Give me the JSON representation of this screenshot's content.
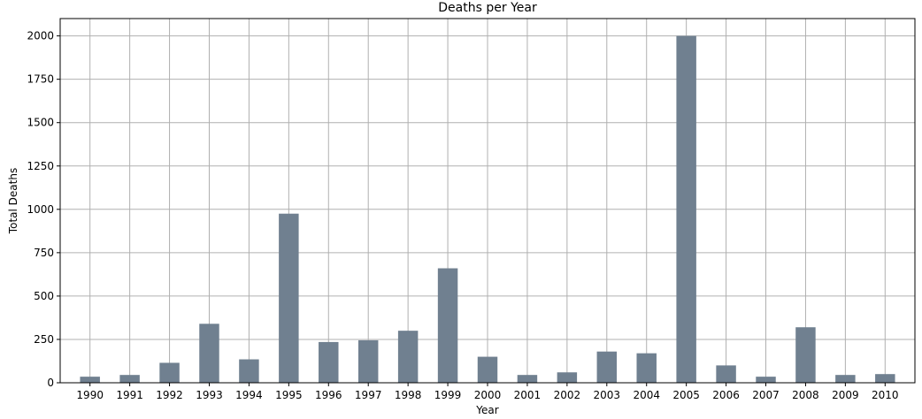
{
  "chart_data": {
    "type": "bar",
    "title": "Deaths per Year",
    "xlabel": "Year",
    "ylabel": "Total Deaths",
    "categories": [
      "1990",
      "1991",
      "1992",
      "1993",
      "1994",
      "1995",
      "1996",
      "1997",
      "1998",
      "1999",
      "2000",
      "2001",
      "2002",
      "2003",
      "2004",
      "2005",
      "2006",
      "2007",
      "2008",
      "2009",
      "2010"
    ],
    "values": [
      35,
      45,
      115,
      340,
      135,
      975,
      235,
      245,
      300,
      660,
      150,
      45,
      60,
      180,
      170,
      2000,
      100,
      35,
      320,
      45,
      50
    ],
    "yticks": [
      0,
      250,
      500,
      750,
      1000,
      1250,
      1500,
      1750,
      2000
    ],
    "ylim": [
      0,
      2100
    ],
    "grid": true,
    "bar_color": "#708090"
  }
}
